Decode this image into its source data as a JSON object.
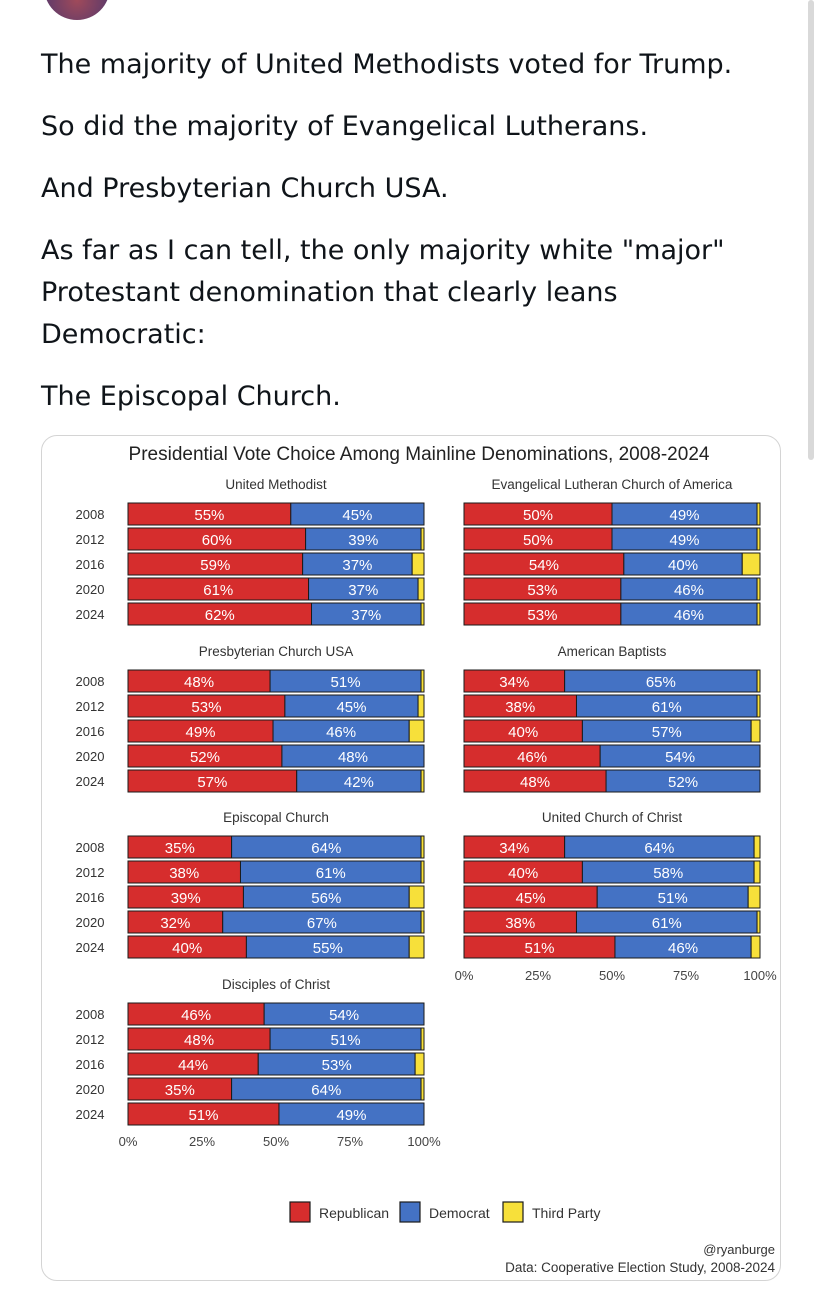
{
  "tweet": {
    "paragraphs": [
      "The majority of United Methodists voted for Trump.",
      "So did the majority of Evangelical Lutherans.",
      "And Presbyterian Church USA.",
      "As far as I can tell, the only majority white \"major\" Protestant denomination that clearly leans Democratic:",
      "The Episcopal Church."
    ]
  },
  "chart_data": {
    "type": "bar",
    "orientation": "horizontal-stacked",
    "title": "Presidential Vote Choice Among Mainline Denominations, 2008-2024",
    "years": [
      "2008",
      "2012",
      "2016",
      "2020",
      "2024"
    ],
    "xlim": [
      0,
      100
    ],
    "x_ticks": [
      "0%",
      "25%",
      "50%",
      "75%",
      "100%"
    ],
    "legend": [
      "Republican",
      "Democrat",
      "Third Party"
    ],
    "colors": {
      "Republican": "#d62d2d",
      "Democrat": "#4472c4",
      "Third Party": "#f7e03a",
      "border": "#1a1a1a"
    },
    "panels": [
      {
        "name": "United Methodist",
        "rep": [
          55,
          60,
          59,
          61,
          62
        ],
        "dem": [
          45,
          39,
          37,
          37,
          37
        ]
      },
      {
        "name": "Evangelical Lutheran Church of America",
        "rep": [
          50,
          50,
          54,
          53,
          53
        ],
        "dem": [
          49,
          49,
          40,
          46,
          46
        ]
      },
      {
        "name": "Presbyterian Church USA",
        "rep": [
          48,
          53,
          49,
          52,
          57
        ],
        "dem": [
          51,
          45,
          46,
          48,
          42
        ]
      },
      {
        "name": "American Baptists",
        "rep": [
          34,
          38,
          40,
          46,
          48
        ],
        "dem": [
          65,
          61,
          57,
          54,
          52
        ]
      },
      {
        "name": "Episcopal Church",
        "rep": [
          35,
          38,
          39,
          32,
          40
        ],
        "dem": [
          64,
          61,
          56,
          67,
          55
        ]
      },
      {
        "name": "United Church of Christ",
        "rep": [
          34,
          40,
          45,
          38,
          51
        ],
        "dem": [
          64,
          58,
          51,
          61,
          46
        ]
      },
      {
        "name": "Disciples of Christ",
        "rep": [
          46,
          48,
          44,
          35,
          51
        ],
        "dem": [
          54,
          51,
          53,
          64,
          49
        ]
      }
    ],
    "credit": "@ryanburge",
    "source": "Data: Cooperative Election Study, 2008-2024"
  }
}
